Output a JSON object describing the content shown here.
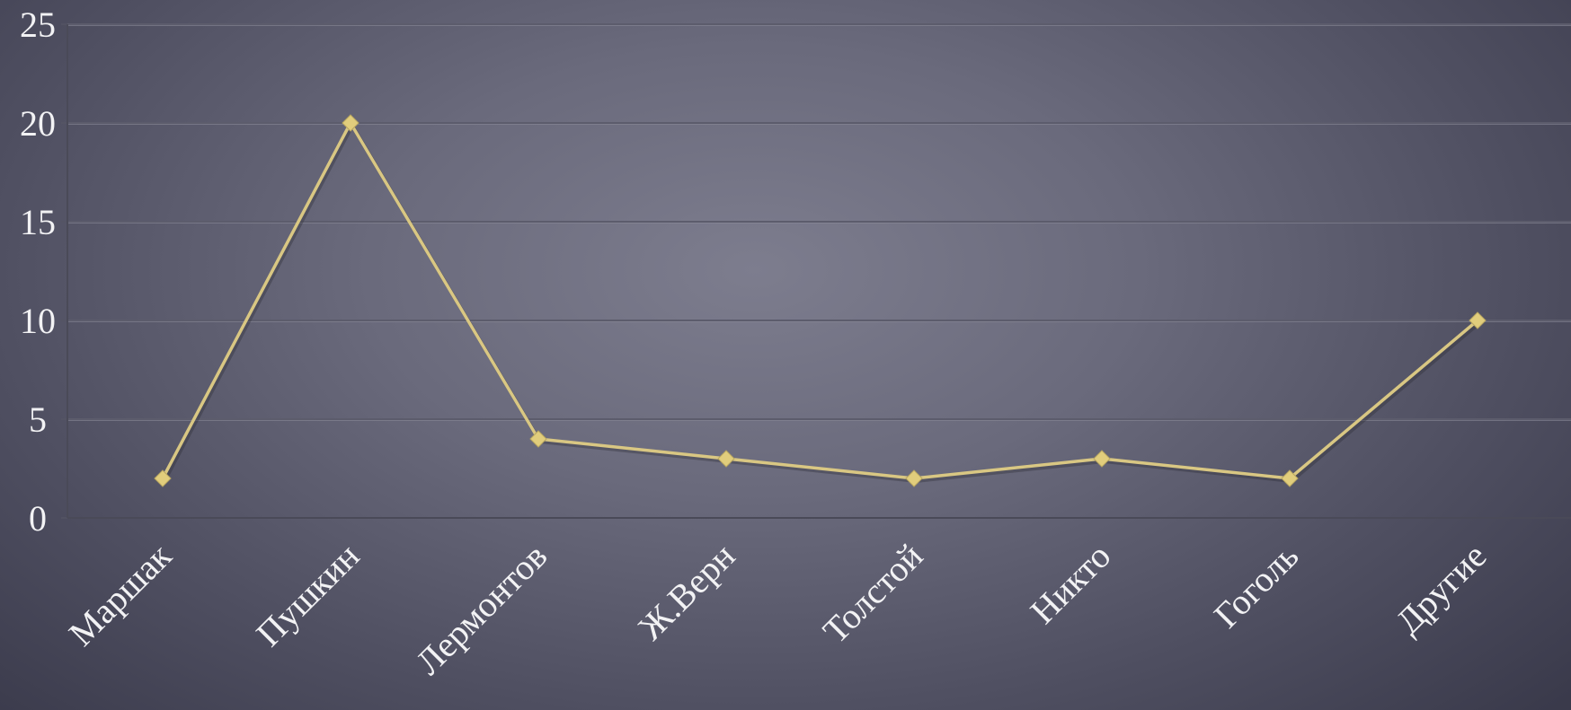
{
  "chart_data": {
    "type": "line",
    "title": "",
    "xlabel": "",
    "ylabel": "",
    "categories": [
      "Маршак",
      "Пушкин",
      "Лермонтов",
      "Ж.Верн",
      "Толстой",
      "Никто",
      "Гоголь",
      "Другие"
    ],
    "series": [
      {
        "values": [
          2,
          20,
          4,
          3,
          2,
          3,
          2,
          10
        ]
      }
    ],
    "ylim": [
      0,
      25
    ],
    "yticks": [
      "0",
      "5",
      "10",
      "15",
      "20",
      "25"
    ],
    "grid": true,
    "legend": "none",
    "line_color": "#d9c783",
    "marker": "diamond"
  }
}
